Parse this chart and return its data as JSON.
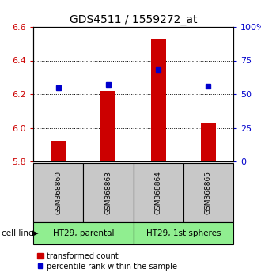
{
  "title": "GDS4511 / 1559272_at",
  "samples": [
    "GSM368860",
    "GSM368863",
    "GSM368864",
    "GSM368865"
  ],
  "red_values": [
    5.92,
    6.22,
    6.53,
    6.03
  ],
  "blue_percentiles": [
    55,
    57,
    68,
    56
  ],
  "ylim_left": [
    5.8,
    6.6
  ],
  "ylim_right": [
    0,
    100
  ],
  "yticks_left": [
    5.8,
    6.0,
    6.2,
    6.4,
    6.6
  ],
  "yticks_right": [
    0,
    25,
    50,
    75,
    100
  ],
  "ytick_labels_right": [
    "0",
    "25",
    "50",
    "75",
    "100%"
  ],
  "cell_lines": [
    "HT29, parental",
    "HT29, 1st spheres"
  ],
  "cell_line_spans": [
    [
      0,
      2
    ],
    [
      2,
      4
    ]
  ],
  "bar_color": "#cc0000",
  "dot_color": "#0000cc",
  "label_color_left": "#cc0000",
  "label_color_right": "#0000cc",
  "cell_line_bg": "#90ee90",
  "sample_bg": "#c8c8c8",
  "legend_red": "transformed count",
  "legend_blue": "percentile rank within the sample",
  "title_fontsize": 10,
  "tick_fontsize": 8,
  "sample_fontsize": 6.5,
  "cellline_fontsize": 7.5,
  "legend_fontsize": 7
}
